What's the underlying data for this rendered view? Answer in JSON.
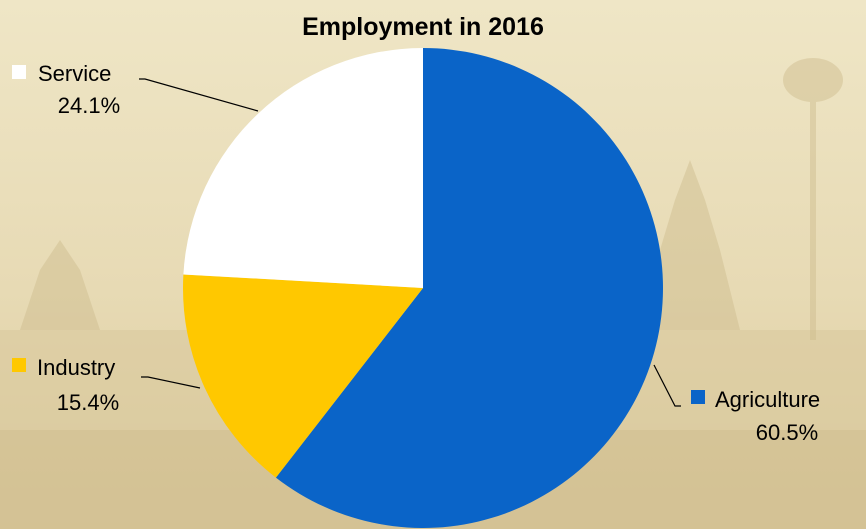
{
  "chart_data": {
    "type": "pie",
    "title": "Employment in 2016",
    "start_angle_deg": 0,
    "direction": "clockwise",
    "slices": [
      {
        "name": "Agriculture",
        "value": 60.5,
        "label": "60.5%",
        "color": "#0a64c8"
      },
      {
        "name": "Industry",
        "value": 15.4,
        "label": "15.4%",
        "color": "#ffc800"
      },
      {
        "name": "Service",
        "value": 24.1,
        "label": "24.1%",
        "color": "#ffffff"
      }
    ],
    "legend": "none",
    "data_labels": "outside with leader lines"
  },
  "background": {
    "description_color": "#e9ddb8"
  }
}
